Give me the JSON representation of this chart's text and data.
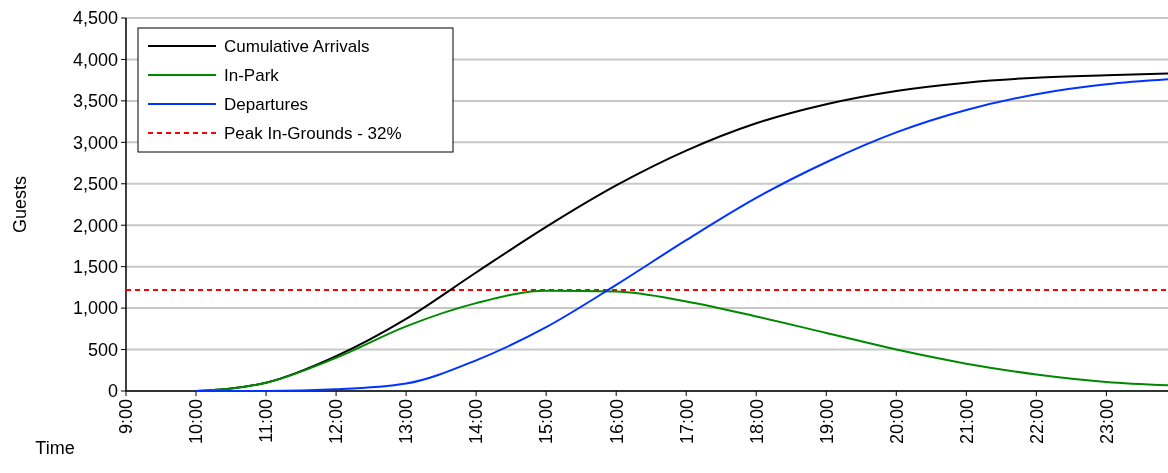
{
  "chart_data": {
    "type": "line",
    "xlabel": "Time",
    "ylabel": "Guests",
    "xlim": [
      9,
      23.88
    ],
    "ylim": [
      0,
      4500
    ],
    "xticks": [
      {
        "value": 9,
        "label": "9:00"
      },
      {
        "value": 10,
        "label": "10:00"
      },
      {
        "value": 11,
        "label": "11:00"
      },
      {
        "value": 12,
        "label": "12:00"
      },
      {
        "value": 13,
        "label": "13:00"
      },
      {
        "value": 14,
        "label": "14:00"
      },
      {
        "value": 15,
        "label": "15:00"
      },
      {
        "value": 16,
        "label": "16:00"
      },
      {
        "value": 17,
        "label": "17:00"
      },
      {
        "value": 18,
        "label": "18:00"
      },
      {
        "value": 19,
        "label": "19:00"
      },
      {
        "value": 20,
        "label": "20:00"
      },
      {
        "value": 21,
        "label": "21:00"
      },
      {
        "value": 22,
        "label": "22:00"
      },
      {
        "value": 23,
        "label": "23:00"
      }
    ],
    "yticks": [
      {
        "value": 0,
        "label": "0"
      },
      {
        "value": 500,
        "label": "500"
      },
      {
        "value": 1000,
        "label": "1,000"
      },
      {
        "value": 1500,
        "label": "1,500"
      },
      {
        "value": 2000,
        "label": "2,000"
      },
      {
        "value": 2500,
        "label": "2,500"
      },
      {
        "value": 3000,
        "label": "3,000"
      },
      {
        "value": 3500,
        "label": "3,500"
      },
      {
        "value": 4000,
        "label": "4,000"
      },
      {
        "value": 4500,
        "label": "4,500"
      }
    ],
    "grid": "y",
    "legend": "top left",
    "line_style": "solid",
    "x": [
      10,
      10.5,
      11,
      12,
      13,
      14,
      15,
      16,
      17,
      18,
      19,
      20,
      21,
      22,
      23,
      23.88
    ],
    "series": [
      {
        "name": "Cumulative Arrivals",
        "color": "#000000",
        "values": [
          0,
          30,
          100,
          420,
          870,
          1430,
          1980,
          2480,
          2900,
          3230,
          3460,
          3620,
          3720,
          3780,
          3810,
          3830
        ]
      },
      {
        "name": "In-Park",
        "color": "#008800",
        "values": [
          0,
          30,
          100,
          400,
          780,
          1060,
          1210,
          1200,
          1080,
          900,
          700,
          500,
          330,
          200,
          110,
          70
        ]
      },
      {
        "name": "Departures",
        "color": "#0033ff",
        "values": [
          0,
          0,
          0,
          20,
          90,
          370,
          770,
          1280,
          1820,
          2330,
          2760,
          3120,
          3390,
          3580,
          3700,
          3760
        ]
      }
    ],
    "ref_lines": [
      {
        "axis": "y",
        "value": 1220,
        "label": "Peak In-Grounds - 32%",
        "color": "#ff0000",
        "line_style": "dashed"
      }
    ]
  }
}
